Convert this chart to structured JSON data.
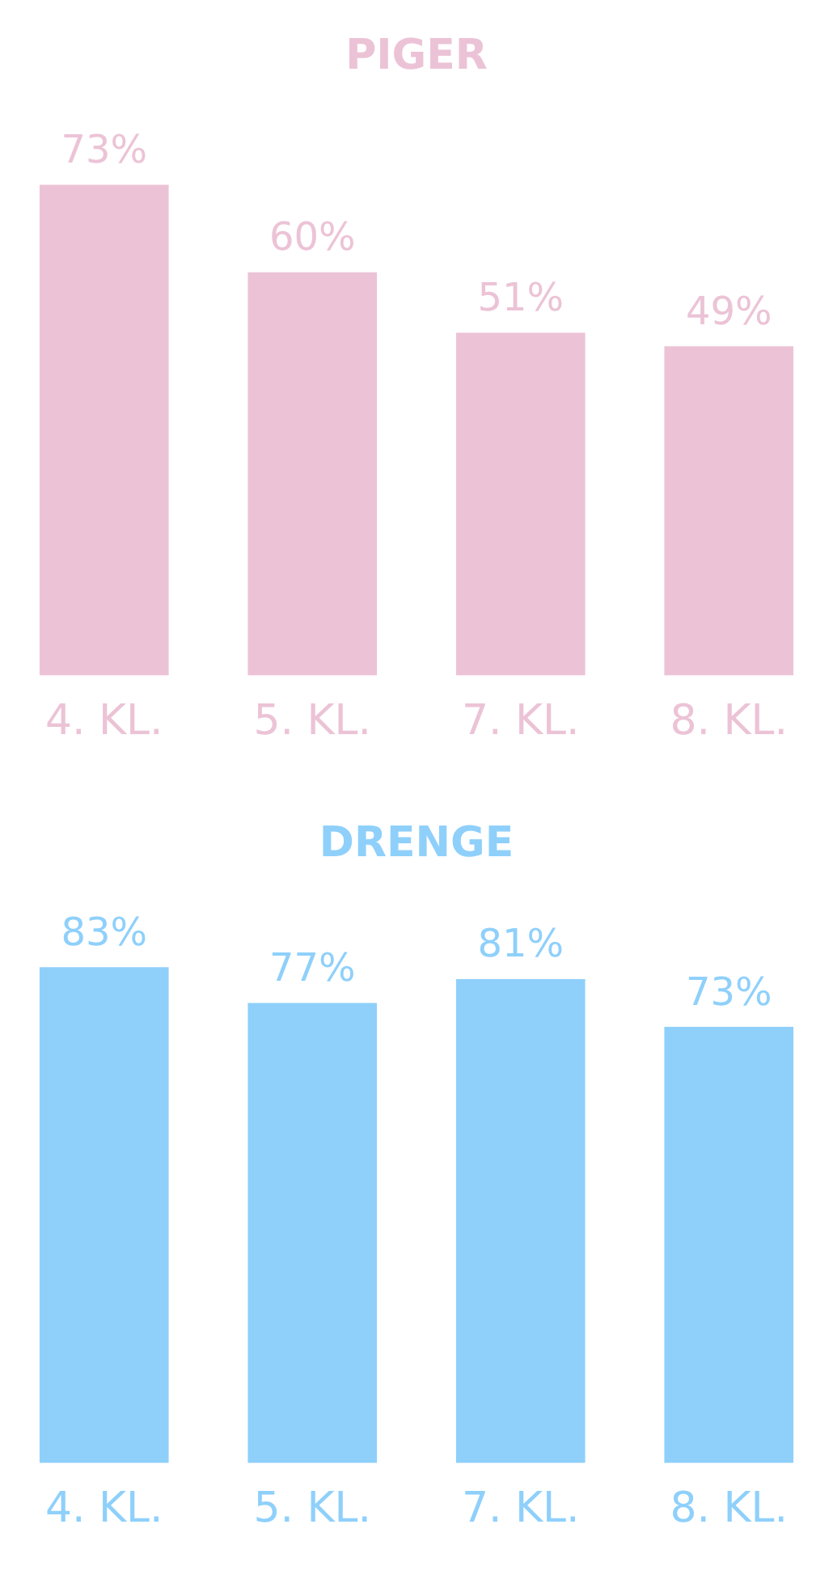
{
  "chart_data": [
    {
      "type": "bar",
      "title": "PIGER",
      "categories": [
        "4. KL.",
        "5. KL.",
        "7. KL.",
        "8. KL."
      ],
      "values": [
        73,
        60,
        51,
        49
      ],
      "value_labels": [
        "73%",
        "60%",
        "51%",
        "49%"
      ],
      "color": "#ecc3d6",
      "grid": false,
      "legend": false
    },
    {
      "type": "bar",
      "title": "DRENGE",
      "categories": [
        "4. KL.",
        "5. KL.",
        "7. KL.",
        "8. KL."
      ],
      "values": [
        83,
        77,
        81,
        73
      ],
      "value_labels": [
        "83%",
        "77%",
        "81%",
        "73%"
      ],
      "color": "#8fd0fb",
      "grid": false,
      "legend": false
    }
  ]
}
